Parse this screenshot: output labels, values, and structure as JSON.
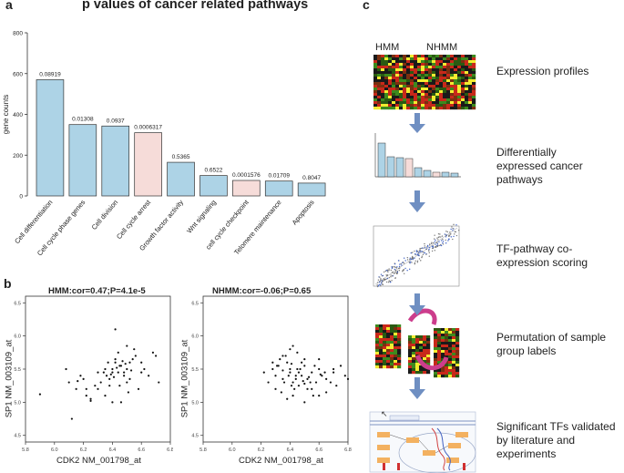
{
  "panel_a": {
    "letter": "a",
    "chart_data": {
      "type": "bar",
      "title": "p values of cancer related pathways",
      "ylabel": "gene counts",
      "xlabel": "",
      "ylim": [
        0,
        800
      ],
      "yticks": [
        0,
        200,
        400,
        600,
        800
      ],
      "categories": [
        "Cell differentiation",
        "Cell cycle phase genes",
        "Cell division",
        "Cell cycle arrest",
        "Growth factor activity",
        "Wnt signaling",
        "cell cycle checkpoint",
        "Telomere maintenance",
        "Apoptosis"
      ],
      "values": [
        570,
        350,
        343,
        310,
        165,
        100,
        76,
        73,
        63
      ],
      "p_labels": [
        "0.08919",
        "0.01308",
        "0.0937",
        "0.0006317",
        "0.5365",
        "0.6522",
        "0.0001576",
        "0.01709",
        "0.8047"
      ],
      "highlighted": [
        false,
        false,
        false,
        true,
        false,
        false,
        true,
        false,
        false
      ],
      "colors": {
        "normal": "#add3e6",
        "highlight": "#f6dcd9",
        "edge": "#333333"
      }
    }
  },
  "panel_b": {
    "letter": "b",
    "charts": [
      {
        "type": "scatter",
        "title": "HMM:cor=0.47;P=4.1e-5",
        "xlabel": "CDK2 NM_001798_at",
        "ylabel": "SP1 NM_003109_at",
        "xlim": [
          5.8,
          6.8
        ],
        "ylim": [
          4.4,
          6.6
        ],
        "xticks": [
          "5.8",
          "6.0",
          "6.2",
          "6.4",
          "6.6",
          "6.8"
        ],
        "yticks": [
          "4.5",
          "5.0",
          "5.5",
          "6.0",
          "6.5"
        ],
        "x": [
          5.9,
          6.08,
          6.12,
          6.1,
          6.15,
          6.2,
          6.22,
          6.25,
          6.18,
          6.3,
          6.32,
          6.35,
          6.4,
          6.38,
          6.42,
          6.45,
          6.48,
          6.5,
          6.52,
          6.45,
          6.4,
          6.35,
          6.55,
          6.6,
          6.65,
          6.7,
          6.72,
          6.68,
          6.5,
          6.42,
          6.38,
          6.3,
          6.25,
          6.44,
          6.46,
          6.52,
          6.56,
          6.62,
          6.28,
          6.36,
          6.4,
          6.48,
          6.54,
          6.58,
          6.5,
          6.46,
          6.34,
          6.22,
          6.16,
          6.42,
          6.44,
          6.6,
          6.41,
          6.47,
          6.53,
          6.39,
          6.43,
          6.49,
          6.51,
          6.37
        ],
        "y": [
          5.12,
          5.5,
          4.75,
          5.3,
          5.2,
          5.35,
          5.1,
          5.02,
          5.4,
          5.45,
          5.3,
          5.5,
          5.45,
          5.25,
          5.6,
          5.55,
          5.4,
          5.5,
          5.6,
          5.25,
          5.0,
          5.1,
          5.8,
          5.6,
          5.4,
          5.7,
          5.3,
          5.75,
          5.85,
          5.65,
          5.35,
          5.2,
          5.05,
          5.45,
          5.55,
          5.35,
          5.7,
          5.5,
          5.25,
          5.4,
          5.5,
          5.45,
          5.65,
          5.2,
          5.3,
          5.0,
          5.45,
          5.2,
          5.32,
          6.1,
          5.75,
          5.45,
          5.38,
          5.62,
          5.48,
          5.42,
          5.52,
          5.58,
          5.15,
          5.6
        ]
      },
      {
        "type": "scatter",
        "title": "NHMM:cor=-0.06;P=0.65",
        "xlabel": "CDK2 NM_001798_at",
        "ylabel": "SP1 NM_003109_at",
        "xlim": [
          5.8,
          6.8
        ],
        "ylim": [
          4.4,
          6.6
        ],
        "xticks": [
          "5.8",
          "6.0",
          "6.2",
          "6.4",
          "6.6",
          "6.8"
        ],
        "yticks": [
          "4.5",
          "5.0",
          "5.5",
          "6.0",
          "6.5"
        ],
        "x": [
          6.22,
          6.25,
          6.28,
          6.3,
          6.32,
          6.35,
          6.38,
          6.4,
          6.42,
          6.45,
          6.48,
          6.5,
          6.52,
          6.55,
          6.58,
          6.6,
          6.62,
          6.65,
          6.68,
          6.7,
          6.72,
          6.75,
          6.78,
          6.8,
          6.3,
          6.35,
          6.4,
          6.45,
          6.5,
          6.55,
          6.6,
          6.65,
          6.7,
          6.38,
          6.42,
          6.46,
          6.5,
          6.54,
          6.28,
          6.33,
          6.37,
          6.41,
          6.44,
          6.48,
          6.52,
          6.56,
          6.6,
          6.64,
          6.36,
          6.4,
          6.44,
          6.34,
          6.46,
          6.5,
          6.42,
          6.31,
          6.57,
          6.39,
          6.47,
          6.53,
          6.61,
          6.43,
          6.49,
          6.35,
          6.41
        ],
        "y": [
          5.45,
          5.3,
          5.5,
          5.4,
          5.55,
          5.35,
          5.6,
          5.45,
          5.3,
          5.5,
          5.4,
          5.55,
          5.35,
          5.45,
          5.3,
          5.5,
          5.4,
          5.35,
          5.3,
          5.45,
          5.25,
          5.55,
          5.4,
          5.35,
          5.2,
          5.7,
          5.8,
          5.75,
          5.65,
          5.2,
          5.1,
          5.15,
          5.5,
          5.05,
          5.1,
          5.25,
          5.0,
          5.3,
          5.6,
          5.65,
          5.7,
          5.25,
          5.4,
          5.6,
          5.2,
          5.1,
          5.65,
          5.45,
          5.3,
          5.5,
          5.35,
          5.15,
          5.45,
          5.28,
          5.85,
          5.55,
          5.55,
          5.4,
          5.5,
          5.38,
          5.42,
          5.2,
          5.32,
          5.48,
          5.58
        ]
      }
    ]
  },
  "panel_c": {
    "letter": "c",
    "heatmap_labels": {
      "left": "HMM",
      "right": "NHMM"
    },
    "steps": [
      {
        "label": "Expression profiles"
      },
      {
        "label": "Differentially expressed cancer pathways"
      },
      {
        "label": "TF-pathway co-expression scoring"
      },
      {
        "label": "Permutation of sample group labels"
      },
      {
        "label": "Significant TFs validated by literature and experiments"
      }
    ],
    "colors": {
      "arrow": "#6f8fc2",
      "swirl": "#cc3d8c",
      "heat_red": "#c8281a",
      "heat_green": "#3c8a1e",
      "heat_yellow": "#f3ec30"
    }
  }
}
